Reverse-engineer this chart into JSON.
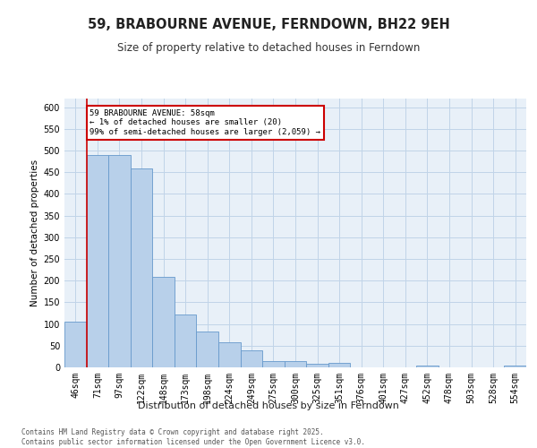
{
  "title": "59, BRABOURNE AVENUE, FERNDOWN, BH22 9EH",
  "subtitle": "Size of property relative to detached houses in Ferndown",
  "xlabel": "Distribution of detached houses by size in Ferndown",
  "ylabel": "Number of detached properties",
  "categories": [
    "46sqm",
    "71sqm",
    "97sqm",
    "122sqm",
    "148sqm",
    "173sqm",
    "198sqm",
    "224sqm",
    "249sqm",
    "275sqm",
    "300sqm",
    "325sqm",
    "351sqm",
    "376sqm",
    "401sqm",
    "427sqm",
    "452sqm",
    "478sqm",
    "503sqm",
    "528sqm",
    "554sqm"
  ],
  "values": [
    105,
    490,
    490,
    458,
    208,
    122,
    83,
    57,
    40,
    15,
    15,
    9,
    10,
    0,
    0,
    0,
    5,
    0,
    0,
    0,
    5
  ],
  "bar_color": "#b8d0ea",
  "bar_edge_color": "#6699cc",
  "annotation_text": "59 BRABOURNE AVENUE: 58sqm\n← 1% of detached houses are smaller (20)\n99% of semi-detached houses are larger (2,059) →",
  "annotation_box_color": "#ffffff",
  "annotation_box_edge_color": "#cc0000",
  "vline_color": "#cc0000",
  "vline_x": 0.5,
  "grid_color": "#c0d4e8",
  "background_color": "#e8f0f8",
  "footer": "Contains HM Land Registry data © Crown copyright and database right 2025.\nContains public sector information licensed under the Open Government Licence v3.0.",
  "ylim": [
    0,
    620
  ],
  "yticks": [
    0,
    50,
    100,
    150,
    200,
    250,
    300,
    350,
    400,
    450,
    500,
    550,
    600
  ]
}
